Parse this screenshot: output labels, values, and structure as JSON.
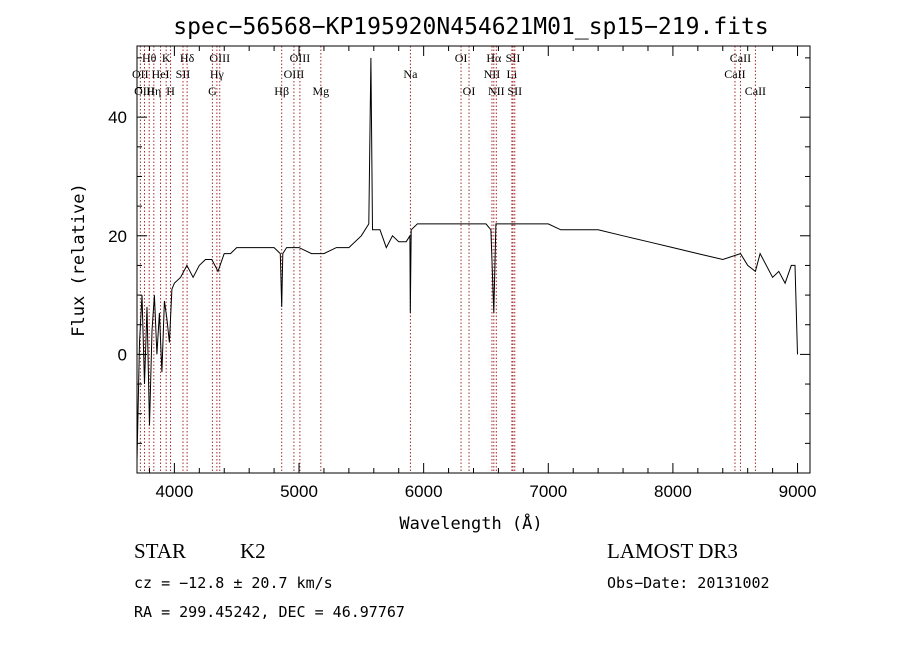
{
  "chart_data": {
    "type": "line",
    "title": "spec−56568−KP195920N454621M01_sp15−219.fits",
    "xlabel": "Wavelength (Å)",
    "ylabel": "Flux (relative)",
    "xlim": [
      3700,
      9100
    ],
    "ylim": [
      -20,
      52
    ],
    "x_ticks": [
      4000,
      5000,
      6000,
      7000,
      8000,
      9000
    ],
    "y_ticks": [
      0,
      20,
      40
    ],
    "spectrum": {
      "name": "flux",
      "x": [
        3700,
        3720,
        3740,
        3760,
        3780,
        3800,
        3820,
        3840,
        3860,
        3880,
        3900,
        3920,
        3940,
        3960,
        3980,
        4000,
        4050,
        4100,
        4150,
        4200,
        4250,
        4300,
        4350,
        4400,
        4450,
        4500,
        4600,
        4700,
        4800,
        4850,
        4861,
        4870,
        4900,
        5000,
        5100,
        5200,
        5300,
        5400,
        5500,
        5560,
        5577,
        5590,
        5650,
        5700,
        5750,
        5800,
        5860,
        5890,
        5893,
        5900,
        5950,
        6000,
        6100,
        6200,
        6300,
        6400,
        6500,
        6540,
        6563,
        6580,
        6650,
        6700,
        6800,
        6900,
        7000,
        7100,
        7200,
        7400,
        7600,
        7800,
        8000,
        8200,
        8400,
        8542,
        8600,
        8662,
        8700,
        8800,
        8850,
        8900,
        8950,
        8980,
        9000
      ],
      "y": [
        -18,
        2,
        10,
        -5,
        8,
        -12,
        4,
        10,
        0,
        7,
        -3,
        9,
        6,
        2,
        11,
        12,
        13,
        15,
        13,
        15,
        16,
        16,
        14,
        17,
        17,
        18,
        18,
        18,
        18,
        17,
        8,
        17,
        18,
        18,
        17,
        17,
        18,
        18,
        20,
        22,
        50,
        21,
        21,
        18,
        20,
        19,
        19,
        20,
        7,
        21,
        22,
        22,
        22,
        22,
        22,
        22,
        22,
        21,
        7,
        22,
        22,
        22,
        22,
        22,
        22,
        21,
        21,
        21,
        20,
        19,
        18,
        17,
        16,
        17,
        15,
        14,
        17,
        13,
        14,
        12,
        15,
        15,
        0
      ]
    },
    "spectral_lines": [
      {
        "label": "Hθ",
        "wavelength": 3798,
        "row": 1
      },
      {
        "label": "OII",
        "wavelength": 3727,
        "row": 2
      },
      {
        "label": "OIII",
        "wavelength": 3760,
        "row": 3
      },
      {
        "label": "Hη",
        "wavelength": 3835,
        "row": 3
      },
      {
        "label": "K",
        "wavelength": 3934,
        "row": 1
      },
      {
        "label": "HeI",
        "wavelength": 3889,
        "row": 2
      },
      {
        "label": "H",
        "wavelength": 3969,
        "row": 3
      },
      {
        "label": "SII",
        "wavelength": 4069,
        "row": 2
      },
      {
        "label": "Hδ",
        "wavelength": 4102,
        "row": 1
      },
      {
        "label": "OIII",
        "wavelength": 4364,
        "row": 1
      },
      {
        "label": "Hγ",
        "wavelength": 4341,
        "row": 2
      },
      {
        "label": "G",
        "wavelength": 4305,
        "row": 3
      },
      {
        "label": "Hβ",
        "wavelength": 4861,
        "row": 3
      },
      {
        "label": "OIII",
        "wavelength": 5007,
        "row": 1
      },
      {
        "label": "OIII",
        "wavelength": 4959,
        "row": 2
      },
      {
        "label": "Mg",
        "wavelength": 5175,
        "row": 3
      },
      {
        "label": "Na",
        "wavelength": 5894,
        "row": 2
      },
      {
        "label": "OI",
        "wavelength": 6300,
        "row": 1
      },
      {
        "label": "OI",
        "wavelength": 6364,
        "row": 3
      },
      {
        "label": "Hα",
        "wavelength": 6563,
        "row": 1
      },
      {
        "label": "NII",
        "wavelength": 6548,
        "row": 2
      },
      {
        "label": "NII",
        "wavelength": 6583,
        "row": 3
      },
      {
        "label": "SII",
        "wavelength": 6717,
        "row": 1
      },
      {
        "label": "Li",
        "wavelength": 6708,
        "row": 2
      },
      {
        "label": "SII",
        "wavelength": 6731,
        "row": 3
      },
      {
        "label": "CaII",
        "wavelength": 8542,
        "row": 1
      },
      {
        "label": "CaII",
        "wavelength": 8498,
        "row": 2
      },
      {
        "label": "CaII",
        "wavelength": 8662,
        "row": 3
      }
    ]
  },
  "info": {
    "class": "STAR",
    "subclass": "K2",
    "survey": "LAMOST DR3",
    "cz": "cz = −12.8 ± 20.7 km/s",
    "obs_date": "Obs−Date: 20131002",
    "radec": "RA = 299.45242, DEC =  46.97767"
  },
  "colors": {
    "line_marker": "#a52a2a",
    "spectrum": "#000000",
    "axes": "#000000"
  }
}
